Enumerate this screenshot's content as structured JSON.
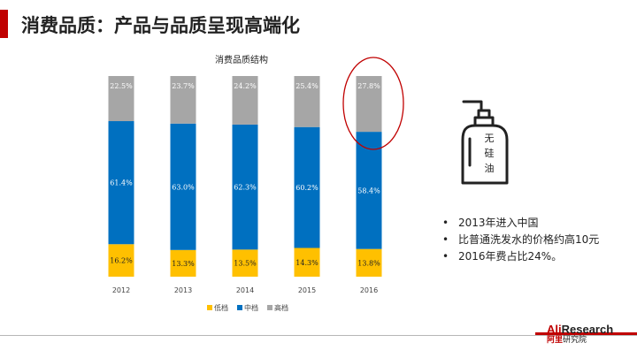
{
  "page": {
    "title": "消费品质：产品与品质呈现高端化"
  },
  "icon": {
    "name": "silicone-free-bottle-icon",
    "label_chars": [
      "无",
      "硅",
      "油"
    ]
  },
  "bullets": [
    "2013年进入中国",
    "比普通洗发水的价格约高10元",
    "2016年费占比24%。"
  ],
  "bullet_marker": "•",
  "logo": {
    "main_red": "Ali",
    "main_rest": "Research",
    "sub_red": "阿里",
    "sub_rest": "研究院"
  },
  "colors": {
    "low": "#ffc000",
    "mid": "#0070c0",
    "high": "#a6a6a6",
    "accent": "#c00000",
    "highlight_circle": "#c00000"
  },
  "chart_data": {
    "type": "bar",
    "stacked": true,
    "title": "消费品质结构",
    "categories": [
      "2012",
      "2013",
      "2014",
      "2015",
      "2016"
    ],
    "series": [
      {
        "name": "低档",
        "values": [
          16.2,
          13.3,
          13.5,
          14.3,
          13.8
        ],
        "labels": [
          "16.2%",
          "13.3%",
          "13.5%",
          "14.3%",
          "13.8%"
        ],
        "color": "#ffc000"
      },
      {
        "name": "中档",
        "values": [
          61.4,
          63.0,
          62.3,
          60.2,
          58.4
        ],
        "labels": [
          "61.4%",
          "63.0%",
          "62.3%",
          "60.2%",
          "58.4%"
        ],
        "color": "#0070c0"
      },
      {
        "name": "高档",
        "values": [
          22.5,
          23.7,
          24.2,
          25.4,
          27.8
        ],
        "labels": [
          "22.5%",
          "23.7%",
          "24.2%",
          "25.4%",
          "27.8%"
        ],
        "color": "#a6a6a6"
      }
    ],
    "ylim": [
      0,
      100
    ],
    "grid": false,
    "legend_position": "bottom",
    "highlight_category": "2016"
  }
}
